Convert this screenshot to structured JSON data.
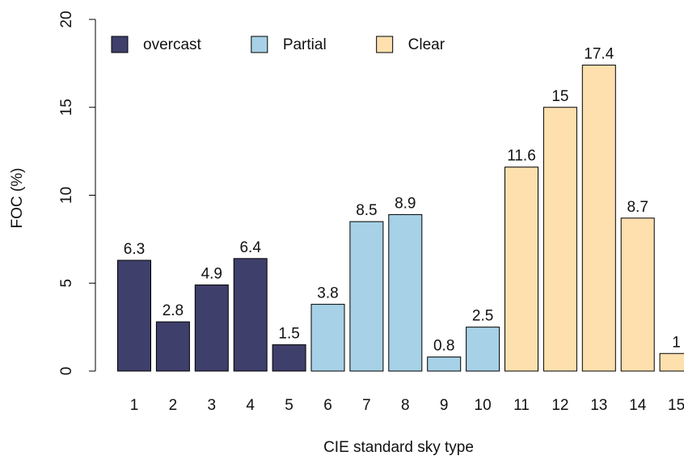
{
  "chart_data": {
    "type": "bar",
    "x_label": "CIE standard sky type",
    "y_label": "FOC (%)",
    "categories": [
      "1",
      "2",
      "3",
      "4",
      "5",
      "6",
      "7",
      "8",
      "9",
      "10",
      "11",
      "12",
      "13",
      "14",
      "15"
    ],
    "series": [
      {
        "name": "overcast",
        "color": "#3f3f6b",
        "values": [
          6.3,
          2.8,
          4.9,
          6.4,
          1.5,
          null,
          null,
          null,
          null,
          null,
          null,
          null,
          null,
          null,
          null
        ]
      },
      {
        "name": "Partial",
        "color": "#a6d1e6",
        "values": [
          null,
          null,
          null,
          null,
          null,
          3.8,
          8.5,
          8.9,
          0.8,
          2.5,
          null,
          null,
          null,
          null,
          null
        ]
      },
      {
        "name": "Clear",
        "color": "#fde0ae",
        "values": [
          null,
          null,
          null,
          null,
          null,
          null,
          null,
          null,
          null,
          null,
          11.6,
          15,
          17.4,
          8.7,
          1
        ]
      }
    ],
    "ylim": [
      0,
      20
    ],
    "yticks": [
      0,
      5,
      10,
      15,
      20
    ],
    "legend": "top-left"
  }
}
